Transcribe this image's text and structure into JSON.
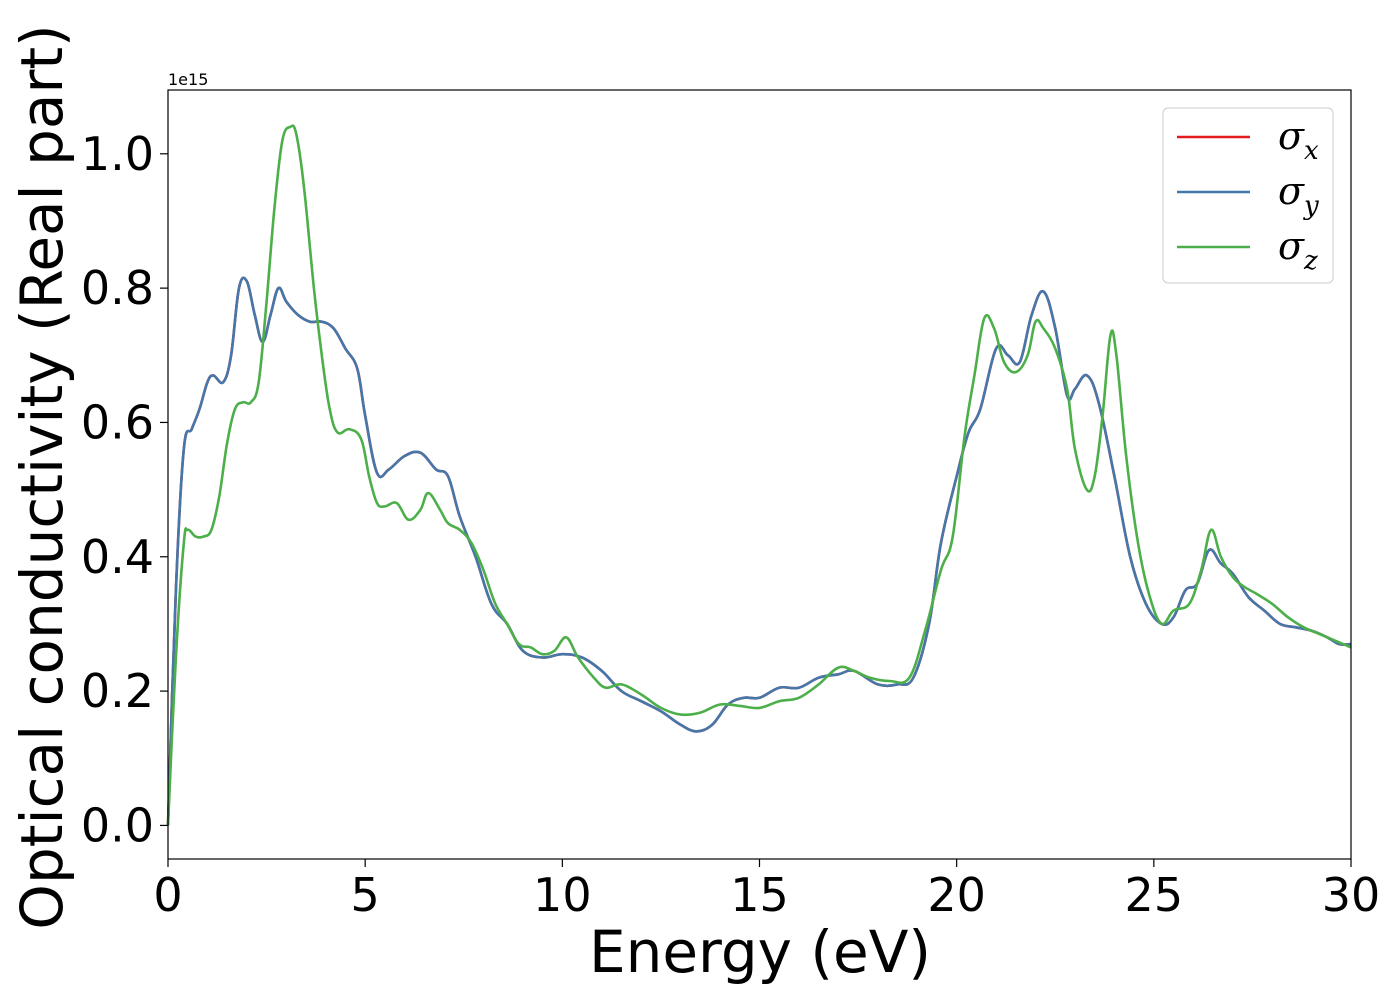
{
  "chart_data": {
    "type": "line",
    "title": "",
    "xlabel": "Energy (eV)",
    "ylabel": "Optical conductivity (Real part)",
    "y_offset_label": "1e15",
    "xlim": [
      0,
      30
    ],
    "ylim": [
      -0.05,
      1.095
    ],
    "xticks": [
      0,
      5,
      10,
      15,
      20,
      25,
      30
    ],
    "xtick_labels": [
      "0",
      "5",
      "10",
      "15",
      "20",
      "25",
      "30"
    ],
    "yticks": [
      0.0,
      0.2,
      0.4,
      0.6,
      0.8,
      1.0
    ],
    "ytick_labels": [
      "0.0",
      "0.2",
      "0.4",
      "0.6",
      "0.8",
      "1.0"
    ],
    "grid": false,
    "legend_position": "top-right",
    "series": [
      {
        "name": "σx",
        "symbol": "σ",
        "subscript": "x",
        "color": "#e41a1c",
        "x": [
          0,
          0.2,
          0.4,
          0.6,
          0.8,
          1.0,
          1.15,
          1.4,
          1.6,
          1.8,
          2.0,
          2.2,
          2.4,
          2.6,
          2.8,
          3.0,
          3.3,
          3.6,
          3.9,
          4.2,
          4.5,
          4.8,
          5.0,
          5.3,
          5.6,
          6.0,
          6.4,
          6.8,
          7.1,
          7.4,
          7.8,
          8.2,
          8.6,
          9.0,
          9.5,
          10.0,
          10.5,
          11.0,
          11.5,
          12.0,
          12.5,
          13.0,
          13.4,
          13.8,
          14.2,
          14.6,
          15.0,
          15.5,
          16.0,
          16.5,
          17.0,
          17.4,
          18.0,
          18.5,
          18.9,
          19.3,
          19.6,
          20.0,
          20.3,
          20.6,
          21.0,
          21.3,
          21.6,
          21.9,
          22.2,
          22.5,
          22.8,
          23.0,
          23.3,
          23.6,
          24.0,
          24.4,
          24.8,
          25.2,
          25.5,
          25.8,
          26.1,
          26.4,
          26.7,
          27.0,
          27.4,
          27.8,
          28.2,
          28.6,
          29.0,
          29.4,
          29.7,
          30.0
        ],
        "y": [
          0.0,
          0.35,
          0.56,
          0.59,
          0.62,
          0.66,
          0.67,
          0.66,
          0.7,
          0.8,
          0.81,
          0.76,
          0.72,
          0.76,
          0.8,
          0.78,
          0.76,
          0.75,
          0.75,
          0.74,
          0.71,
          0.68,
          0.61,
          0.525,
          0.53,
          0.55,
          0.555,
          0.53,
          0.52,
          0.46,
          0.4,
          0.33,
          0.3,
          0.26,
          0.25,
          0.255,
          0.25,
          0.23,
          0.2,
          0.185,
          0.17,
          0.15,
          0.14,
          0.15,
          0.18,
          0.19,
          0.19,
          0.205,
          0.205,
          0.22,
          0.225,
          0.23,
          0.21,
          0.21,
          0.22,
          0.3,
          0.42,
          0.52,
          0.585,
          0.62,
          0.71,
          0.7,
          0.69,
          0.76,
          0.795,
          0.74,
          0.64,
          0.65,
          0.67,
          0.63,
          0.52,
          0.4,
          0.33,
          0.3,
          0.31,
          0.35,
          0.36,
          0.41,
          0.39,
          0.375,
          0.34,
          0.32,
          0.3,
          0.295,
          0.29,
          0.28,
          0.27,
          0.27
        ]
      },
      {
        "name": "σy",
        "symbol": "σ",
        "subscript": "y",
        "color": "#4477aa",
        "x": [
          0,
          0.2,
          0.4,
          0.6,
          0.8,
          1.0,
          1.15,
          1.4,
          1.6,
          1.8,
          2.0,
          2.2,
          2.4,
          2.6,
          2.8,
          3.0,
          3.3,
          3.6,
          3.9,
          4.2,
          4.5,
          4.8,
          5.0,
          5.3,
          5.6,
          6.0,
          6.4,
          6.8,
          7.1,
          7.4,
          7.8,
          8.2,
          8.6,
          9.0,
          9.5,
          10.0,
          10.5,
          11.0,
          11.5,
          12.0,
          12.5,
          13.0,
          13.4,
          13.8,
          14.2,
          14.6,
          15.0,
          15.5,
          16.0,
          16.5,
          17.0,
          17.4,
          18.0,
          18.5,
          18.9,
          19.3,
          19.6,
          20.0,
          20.3,
          20.6,
          21.0,
          21.3,
          21.6,
          21.9,
          22.2,
          22.5,
          22.8,
          23.0,
          23.3,
          23.6,
          24.0,
          24.4,
          24.8,
          25.2,
          25.5,
          25.8,
          26.1,
          26.4,
          26.7,
          27.0,
          27.4,
          27.8,
          28.2,
          28.6,
          29.0,
          29.4,
          29.7,
          30.0
        ],
        "y": [
          0.0,
          0.35,
          0.56,
          0.59,
          0.62,
          0.66,
          0.67,
          0.66,
          0.7,
          0.8,
          0.81,
          0.76,
          0.72,
          0.76,
          0.8,
          0.78,
          0.76,
          0.75,
          0.75,
          0.74,
          0.71,
          0.68,
          0.61,
          0.525,
          0.53,
          0.55,
          0.555,
          0.53,
          0.52,
          0.46,
          0.4,
          0.33,
          0.3,
          0.26,
          0.25,
          0.255,
          0.25,
          0.23,
          0.2,
          0.185,
          0.17,
          0.15,
          0.14,
          0.15,
          0.18,
          0.19,
          0.19,
          0.205,
          0.205,
          0.22,
          0.225,
          0.23,
          0.21,
          0.21,
          0.22,
          0.3,
          0.42,
          0.52,
          0.585,
          0.62,
          0.71,
          0.7,
          0.69,
          0.76,
          0.795,
          0.74,
          0.64,
          0.65,
          0.67,
          0.63,
          0.52,
          0.4,
          0.33,
          0.3,
          0.31,
          0.35,
          0.36,
          0.41,
          0.39,
          0.375,
          0.34,
          0.32,
          0.3,
          0.295,
          0.29,
          0.28,
          0.27,
          0.27
        ]
      },
      {
        "name": "σz",
        "symbol": "σ",
        "subscript": "z",
        "color": "#4daf4a",
        "x": [
          0,
          0.2,
          0.4,
          0.5,
          0.7,
          0.9,
          1.1,
          1.3,
          1.5,
          1.7,
          1.9,
          2.1,
          2.3,
          2.5,
          2.7,
          2.9,
          3.1,
          3.25,
          3.45,
          3.7,
          3.9,
          4.1,
          4.3,
          4.6,
          4.9,
          5.1,
          5.3,
          5.5,
          5.8,
          6.1,
          6.4,
          6.6,
          6.9,
          7.1,
          7.4,
          7.7,
          8.0,
          8.3,
          8.6,
          8.9,
          9.2,
          9.5,
          9.8,
          10.1,
          10.4,
          10.8,
          11.1,
          11.5,
          12.0,
          12.5,
          13.0,
          13.5,
          14.0,
          14.5,
          15.0,
          15.5,
          16.0,
          16.5,
          17.0,
          17.4,
          17.8,
          18.3,
          18.8,
          19.2,
          19.6,
          19.9,
          20.2,
          20.45,
          20.7,
          20.95,
          21.2,
          21.5,
          21.8,
          22.0,
          22.2,
          22.5,
          22.8,
          23.0,
          23.3,
          23.5,
          23.7,
          23.9,
          24.05,
          24.3,
          24.6,
          24.9,
          25.2,
          25.5,
          25.9,
          26.2,
          26.45,
          26.7,
          27.0,
          27.3,
          27.6,
          28.0,
          28.4,
          28.8,
          29.2,
          29.6,
          30.0
        ],
        "y": [
          0.0,
          0.25,
          0.42,
          0.44,
          0.43,
          0.43,
          0.44,
          0.49,
          0.57,
          0.62,
          0.63,
          0.63,
          0.66,
          0.78,
          0.92,
          1.02,
          1.04,
          1.03,
          0.95,
          0.8,
          0.7,
          0.62,
          0.585,
          0.59,
          0.575,
          0.52,
          0.48,
          0.475,
          0.48,
          0.455,
          0.47,
          0.495,
          0.47,
          0.45,
          0.44,
          0.42,
          0.38,
          0.33,
          0.3,
          0.27,
          0.265,
          0.255,
          0.26,
          0.28,
          0.25,
          0.22,
          0.205,
          0.21,
          0.195,
          0.175,
          0.165,
          0.168,
          0.18,
          0.178,
          0.175,
          0.185,
          0.19,
          0.21,
          0.235,
          0.23,
          0.22,
          0.215,
          0.22,
          0.29,
          0.38,
          0.43,
          0.58,
          0.67,
          0.755,
          0.74,
          0.69,
          0.675,
          0.7,
          0.75,
          0.74,
          0.71,
          0.65,
          0.56,
          0.5,
          0.52,
          0.61,
          0.73,
          0.7,
          0.55,
          0.42,
          0.34,
          0.3,
          0.32,
          0.33,
          0.38,
          0.44,
          0.4,
          0.37,
          0.355,
          0.345,
          0.33,
          0.31,
          0.295,
          0.285,
          0.275,
          0.265
        ]
      }
    ]
  }
}
